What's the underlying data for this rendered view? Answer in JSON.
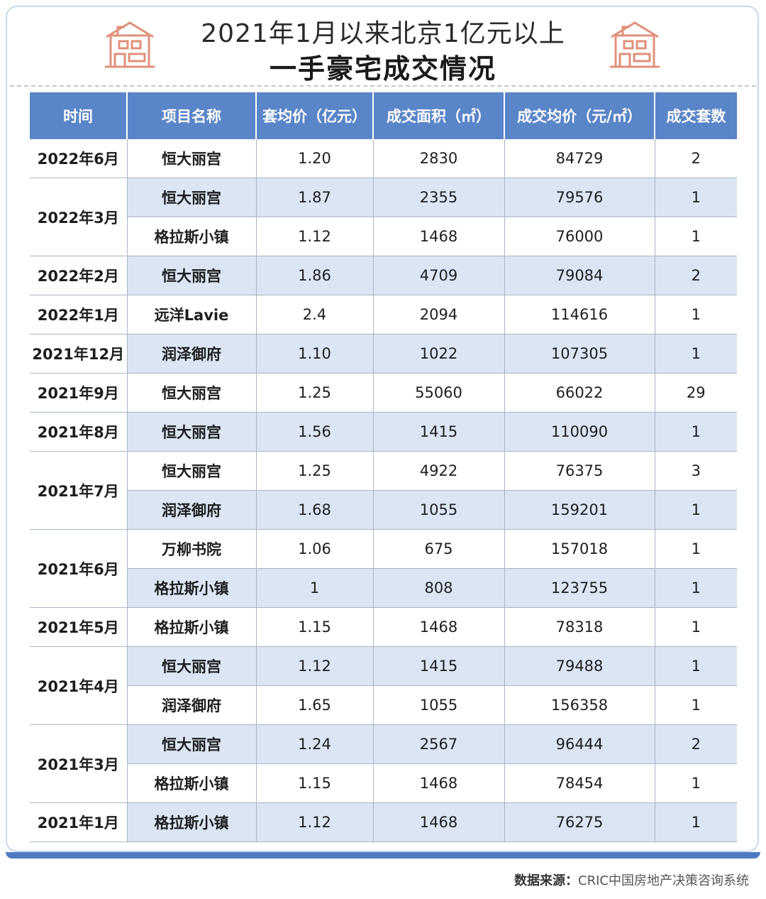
{
  "title": {
    "line1": "2021年1月以来北京1亿元以上",
    "line2": "一手豪宅成交情况"
  },
  "icons": {
    "left": "house-icon",
    "right": "house-icon",
    "accent": "#e0907a",
    "header_color": "#5a85c8"
  },
  "table": {
    "headers": [
      "时间",
      "项目名称",
      "套均价（亿元）",
      "成交面积（㎡）",
      "成交均价（元/㎡）",
      "成交套数"
    ],
    "groups": [
      {
        "time": "2022年6月",
        "rows": [
          {
            "name": "恒大丽宫",
            "price": "1.20",
            "area": "2830",
            "avg": "84729",
            "count": "2"
          }
        ]
      },
      {
        "time": "2022年3月",
        "rows": [
          {
            "name": "恒大丽宫",
            "price": "1.87",
            "area": "2355",
            "avg": "79576",
            "count": "1"
          },
          {
            "name": "格拉斯小镇",
            "price": "1.12",
            "area": "1468",
            "avg": "76000",
            "count": "1"
          }
        ]
      },
      {
        "time": "2022年2月",
        "rows": [
          {
            "name": "恒大丽宫",
            "price": "1.86",
            "area": "4709",
            "avg": "79084",
            "count": "2"
          }
        ]
      },
      {
        "time": "2022年1月",
        "rows": [
          {
            "name": "远洋Lavie",
            "price": "2.4",
            "area": "2094",
            "avg": "114616",
            "count": "1"
          }
        ]
      },
      {
        "time": "2021年12月",
        "rows": [
          {
            "name": "润泽御府",
            "price": "1.10",
            "area": "1022",
            "avg": "107305",
            "count": "1"
          }
        ]
      },
      {
        "time": "2021年9月",
        "rows": [
          {
            "name": "恒大丽宫",
            "price": "1.25",
            "area": "55060",
            "avg": "66022",
            "count": "29"
          }
        ]
      },
      {
        "time": "2021年8月",
        "rows": [
          {
            "name": "恒大丽宫",
            "price": "1.56",
            "area": "1415",
            "avg": "110090",
            "count": "1"
          }
        ]
      },
      {
        "time": "2021年7月",
        "rows": [
          {
            "name": "恒大丽宫",
            "price": "1.25",
            "area": "4922",
            "avg": "76375",
            "count": "3"
          },
          {
            "name": "润泽御府",
            "price": "1.68",
            "area": "1055",
            "avg": "159201",
            "count": "1"
          }
        ]
      },
      {
        "time": "2021年6月",
        "rows": [
          {
            "name": "万柳书院",
            "price": "1.06",
            "area": "675",
            "avg": "157018",
            "count": "1"
          },
          {
            "name": "格拉斯小镇",
            "price": "1",
            "area": "808",
            "avg": "123755",
            "count": "1"
          }
        ]
      },
      {
        "time": "2021年5月",
        "rows": [
          {
            "name": "格拉斯小镇",
            "price": "1.15",
            "area": "1468",
            "avg": "78318",
            "count": "1"
          }
        ]
      },
      {
        "time": "2021年4月",
        "rows": [
          {
            "name": "恒大丽宫",
            "price": "1.12",
            "area": "1415",
            "avg": "79488",
            "count": "1"
          },
          {
            "name": "润泽御府",
            "price": "1.65",
            "area": "1055",
            "avg": "156358",
            "count": "1"
          }
        ]
      },
      {
        "time": "2021年3月",
        "rows": [
          {
            "name": "恒大丽宫",
            "price": "1.24",
            "area": "2567",
            "avg": "96444",
            "count": "2"
          },
          {
            "name": "格拉斯小镇",
            "price": "1.15",
            "area": "1468",
            "avg": "78454",
            "count": "1"
          }
        ]
      },
      {
        "time": "2021年1月",
        "rows": [
          {
            "name": "格拉斯小镇",
            "price": "1.12",
            "area": "1468",
            "avg": "76275",
            "count": "1"
          }
        ]
      }
    ]
  },
  "source": {
    "label": "数据来源：",
    "text": "CRIC中国房地产决策咨询系统"
  }
}
